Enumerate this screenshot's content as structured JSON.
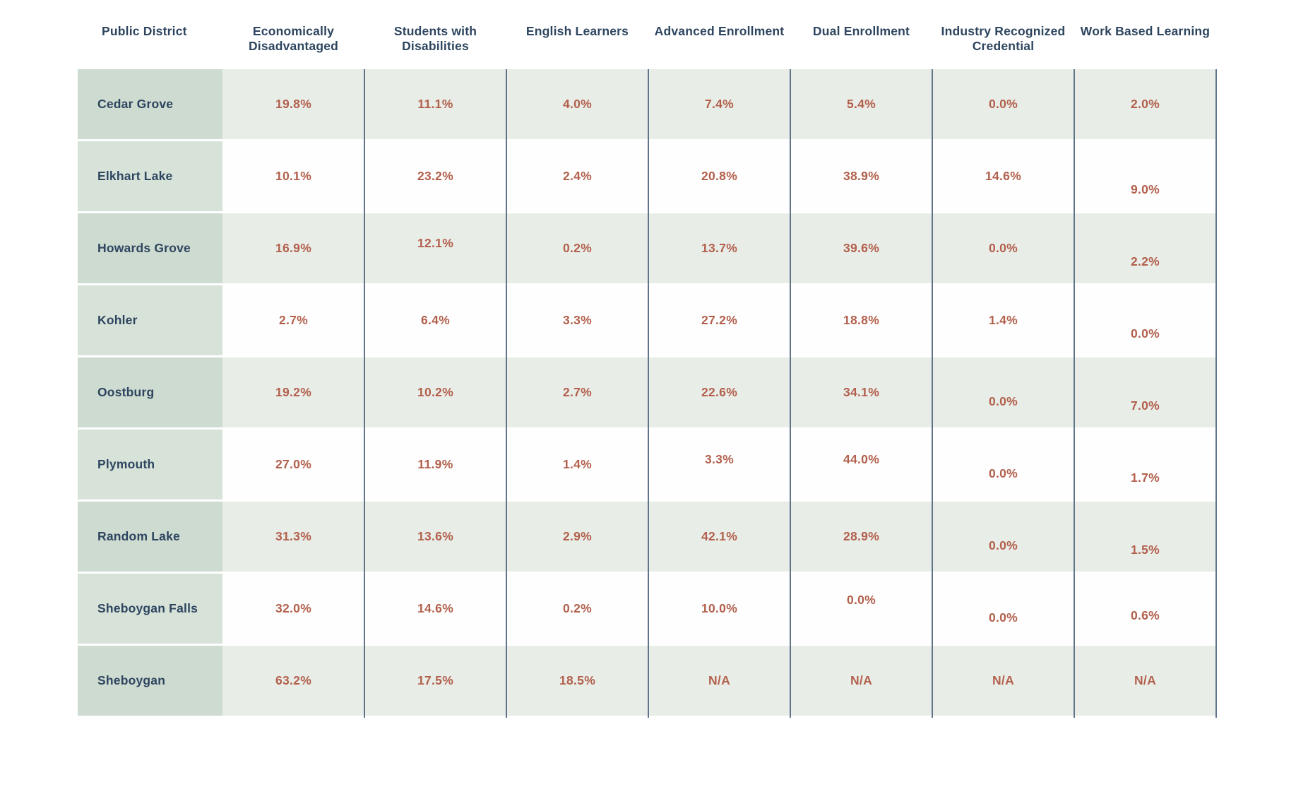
{
  "table": {
    "headers": [
      "Public District",
      "Economically Disadvantaged",
      "Students with Disabilities",
      "English Learners",
      "Advanced Enrollment",
      "Dual Enrollment",
      "Industry Recognized Credential",
      "Work Based Learning"
    ],
    "rows": [
      {
        "district": "Cedar Grove",
        "values": [
          "19.8%",
          "11.1%",
          "4.0%",
          "7.4%",
          "5.4%",
          "0.0%",
          "2.0%"
        ]
      },
      {
        "district": "Elkhart Lake",
        "values": [
          "10.1%",
          "23.2%",
          "2.4%",
          "20.8%",
          "38.9%",
          "14.6%",
          "9.0%"
        ]
      },
      {
        "district": "Howards Grove",
        "values": [
          "16.9%",
          "12.1%",
          "0.2%",
          "13.7%",
          "39.6%",
          "0.0%",
          "2.2%"
        ]
      },
      {
        "district": "Kohler",
        "values": [
          "2.7%",
          "6.4%",
          "3.3%",
          "27.2%",
          "18.8%",
          "1.4%",
          "0.0%"
        ]
      },
      {
        "district": "Oostburg",
        "values": [
          "19.2%",
          "10.2%",
          "2.7%",
          "22.6%",
          "34.1%",
          "0.0%",
          "7.0%"
        ]
      },
      {
        "district": "Plymouth",
        "values": [
          "27.0%",
          "11.9%",
          "1.4%",
          "3.3%",
          "44.0%",
          "0.0%",
          "1.7%"
        ]
      },
      {
        "district": "Random Lake",
        "values": [
          "31.3%",
          "13.6%",
          "2.9%",
          "42.1%",
          "28.9%",
          "0.0%",
          "1.5%"
        ]
      },
      {
        "district": "Sheboygan Falls",
        "values": [
          "32.0%",
          "14.6%",
          "0.2%",
          "10.0%",
          "0.0%",
          "0.0%",
          "0.6%"
        ]
      },
      {
        "district": "Sheboygan",
        "values": [
          "63.2%",
          "17.5%",
          "18.5%",
          "N/A",
          "N/A",
          "N/A",
          "N/A"
        ]
      }
    ]
  },
  "colors": {
    "header_text": "#2d455f",
    "district_text": "#2d455f",
    "value_text": "#b2604c",
    "district_cell_odd": "#cedbd0",
    "district_cell_even": "#d7e2d8",
    "data_cell_odd": "#e9ede8",
    "data_cell_even": "#fefefe",
    "column_divider": "#5f7488",
    "background": "#ffffff"
  },
  "chart_data": {
    "type": "table",
    "columns": [
      "Public District",
      "Economically Disadvantaged",
      "Students with Disabilities",
      "English Learners",
      "Advanced Enrollment",
      "Dual Enrollment",
      "Industry Recognized Credential",
      "Work Based Learning"
    ],
    "unit": "percent",
    "rows": [
      [
        "Cedar Grove",
        19.8,
        11.1,
        4.0,
        7.4,
        5.4,
        0.0,
        2.0
      ],
      [
        "Elkhart Lake",
        10.1,
        23.2,
        2.4,
        20.8,
        38.9,
        14.6,
        9.0
      ],
      [
        "Howards Grove",
        16.9,
        12.1,
        0.2,
        13.7,
        39.6,
        0.0,
        2.2
      ],
      [
        "Kohler",
        2.7,
        6.4,
        3.3,
        27.2,
        18.8,
        1.4,
        0.0
      ],
      [
        "Oostburg",
        19.2,
        10.2,
        2.7,
        22.6,
        34.1,
        0.0,
        7.0
      ],
      [
        "Plymouth",
        27.0,
        11.9,
        1.4,
        3.3,
        44.0,
        0.0,
        1.7
      ],
      [
        "Random Lake",
        31.3,
        13.6,
        2.9,
        42.1,
        28.9,
        0.0,
        1.5
      ],
      [
        "Sheboygan Falls",
        32.0,
        14.6,
        0.2,
        10.0,
        0.0,
        0.0,
        0.6
      ],
      [
        "Sheboygan",
        63.2,
        17.5,
        18.5,
        "N/A",
        "N/A",
        "N/A",
        "N/A"
      ]
    ]
  }
}
